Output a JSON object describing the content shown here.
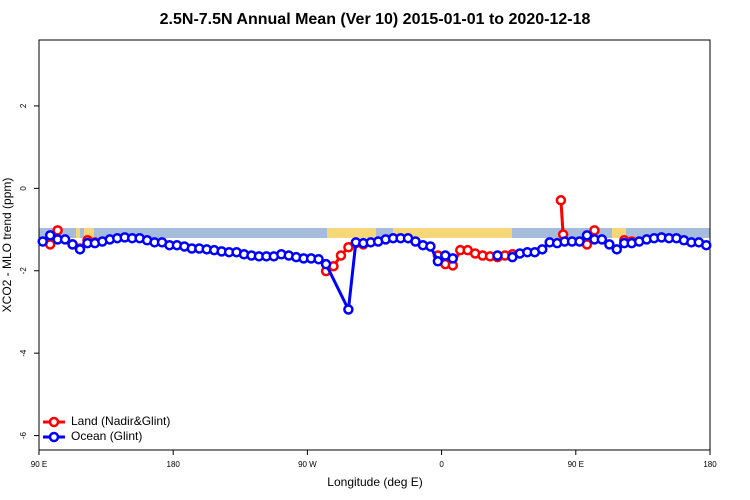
{
  "chart_data": {
    "type": "line",
    "title": "2.5N-7.5N Annual Mean (Ver 10)   2015-01-01 to 2020-12-18",
    "x_label": "Longitude (deg E)",
    "y_label": "XCO2 - MLO trend (ppm)",
    "xlim": [
      90,
      540
    ],
    "xticks": [
      {
        "value": 90,
        "label": "90 E"
      },
      {
        "value": 180,
        "label": "180"
      },
      {
        "value": 270,
        "label": "90 W"
      },
      {
        "value": 360,
        "label": "0"
      },
      {
        "value": 450,
        "label": "90 E"
      },
      {
        "value": 540,
        "label": "180"
      }
    ],
    "ylim": [
      -6.35,
      3.6
    ],
    "yticks": [
      2,
      0,
      -2,
      -4,
      -6
    ],
    "legend": "bottomleft",
    "series": [
      {
        "name": "Land (Nadir&Glint)",
        "color": "#ff0000",
        "x": [
          97.5,
          102.5,
          107.5,
          112.5,
          117.5,
          122.5,
          127.5,
          200,
          282.5,
          287.5,
          292.5,
          297.5,
          302.5,
          307.5,
          330,
          357.5,
          362.5,
          367.5,
          372.5,
          377.5,
          382.5,
          387.5,
          392.5,
          397.5,
          402.5,
          407.5,
          420,
          440,
          441.5,
          450,
          457.5,
          462.5,
          470,
          482.5,
          487.5
        ],
        "values": [
          -1.36,
          -1.02,
          null,
          -1.36,
          -1.46,
          -1.26,
          -1.31,
          null,
          -2.01,
          -1.89,
          -1.63,
          -1.43,
          -1.33,
          -1.36,
          null,
          -1.63,
          -1.84,
          -1.87,
          -1.5,
          -1.5,
          -1.58,
          -1.63,
          -1.65,
          -1.67,
          -1.63,
          -1.6,
          null,
          -0.29,
          -1.12,
          null,
          -1.36,
          -1.02,
          null,
          -1.26,
          -1.29
        ]
      },
      {
        "name": "Ocean (Glint)",
        "color": "#0000ff",
        "x": [
          92.5,
          97.5,
          102.5,
          107.5,
          112.5,
          117.5,
          122.5,
          127.5,
          132.5,
          137.5,
          142.5,
          147.5,
          152.5,
          157.5,
          162.5,
          167.5,
          172.5,
          177.5,
          182.5,
          187.5,
          192.5,
          197.5,
          202.5,
          207.5,
          212.5,
          217.5,
          222.5,
          227.5,
          232.5,
          237.5,
          242.5,
          247.5,
          252.5,
          257.5,
          262.5,
          267.5,
          272.5,
          277.5,
          282.5,
          297.5,
          302.5,
          307.5,
          312.5,
          317.5,
          322.5,
          327.5,
          332.5,
          337.5,
          342.5,
          347.5,
          352.5,
          357.5,
          362.5,
          367.5,
          372.5,
          397.5,
          402.5,
          407.5,
          412.5,
          417.5,
          422.5,
          427.5,
          432.5,
          437.5,
          442.5,
          447.5,
          452.5,
          457.5,
          462.5,
          467.5,
          472.5,
          477.5,
          482.5,
          487.5,
          492.5,
          497.5,
          502.5,
          507.5,
          512.5,
          517.5,
          522.5,
          527.5,
          532.5,
          537.5
        ],
        "values": [
          -1.29,
          -1.14,
          -1.24,
          -1.24,
          -1.36,
          -1.48,
          -1.33,
          -1.33,
          -1.29,
          -1.24,
          -1.21,
          -1.19,
          -1.21,
          -1.21,
          -1.26,
          -1.31,
          -1.31,
          -1.38,
          -1.38,
          -1.41,
          -1.46,
          -1.46,
          -1.48,
          -1.5,
          -1.53,
          -1.55,
          -1.55,
          -1.6,
          -1.63,
          -1.65,
          -1.65,
          -1.65,
          -1.6,
          -1.63,
          -1.67,
          -1.7,
          -1.7,
          -1.72,
          -1.84,
          -2.94,
          -1.31,
          -1.33,
          -1.31,
          -1.29,
          -1.24,
          -1.21,
          -1.21,
          -1.21,
          -1.29,
          -1.38,
          -1.41,
          -1.77,
          -1.63,
          -1.7,
          null,
          -1.63,
          null,
          -1.67,
          -1.58,
          -1.55,
          -1.55,
          -1.48,
          -1.31,
          -1.33,
          -1.29,
          -1.29,
          -1.29,
          -1.14,
          -1.24,
          -1.24,
          -1.36,
          -1.48,
          -1.33,
          -1.33,
          -1.29,
          -1.24,
          -1.21,
          -1.19,
          -1.21,
          -1.21,
          -1.26,
          -1.31,
          -1.31,
          -1.38
        ]
      }
    ]
  }
}
